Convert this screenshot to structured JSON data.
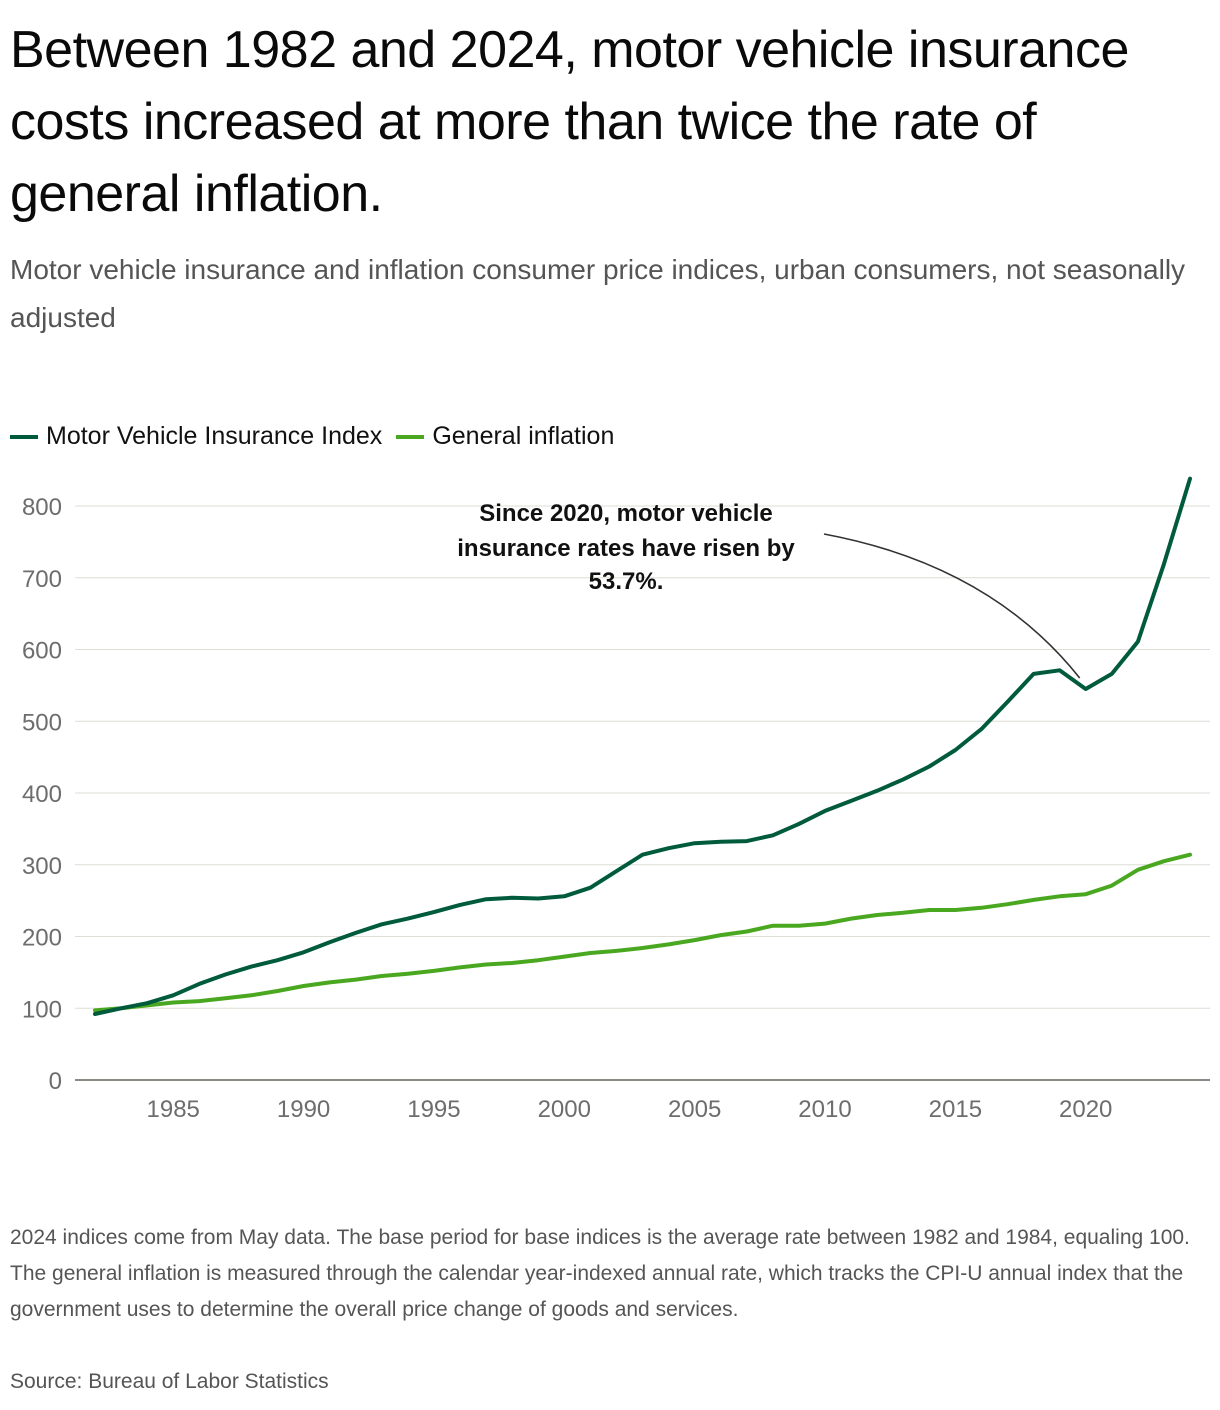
{
  "header": {
    "title": "Between 1982 and 2024, motor vehicle insurance costs increased at more than twice the rate of general inflation.",
    "subtitle": "Motor vehicle insurance and inflation consumer price indices, urban consumers, not seasonally adjusted"
  },
  "legend": [
    {
      "label": "Motor Vehicle Insurance Index",
      "color": "#005a3c"
    },
    {
      "label": "General inflation",
      "color": "#4aa820"
    }
  ],
  "annotation": {
    "lines": [
      "Since 2020, motor vehicle",
      "insurance rates have risen by",
      "53.7%."
    ],
    "target_year": 2020
  },
  "footer": {
    "note": "2024 indices come from May data. The base period for base indices is the average rate between 1982 and 1984, equaling 100. The general inflation is measured through the calendar year-indexed annual rate, which tracks the CPI-U annual index that the government uses to determine the overall price change of goods and services.",
    "source": "Source: Bureau of Labor Statistics"
  },
  "chart_data": {
    "type": "line",
    "title": "Between 1982 and 2024, motor vehicle insurance costs increased at more than twice the rate of general inflation.",
    "xlabel": "",
    "ylabel": "",
    "xlim": [
      1982,
      2024
    ],
    "ylim": [
      0,
      800
    ],
    "grid": true,
    "legend_position": "top-left",
    "x_ticks": [
      1985,
      1990,
      1995,
      2000,
      2005,
      2010,
      2015,
      2020
    ],
    "y_ticks": [
      0,
      100,
      200,
      300,
      400,
      500,
      600,
      700,
      800
    ],
    "x": [
      1982,
      1983,
      1984,
      1985,
      1986,
      1987,
      1988,
      1989,
      1990,
      1991,
      1992,
      1993,
      1994,
      1995,
      1996,
      1997,
      1998,
      1999,
      2000,
      2001,
      2002,
      2003,
      2004,
      2005,
      2006,
      2007,
      2008,
      2009,
      2010,
      2011,
      2012,
      2013,
      2014,
      2015,
      2016,
      2017,
      2018,
      2019,
      2020,
      2021,
      2022,
      2023,
      2024
    ],
    "series": [
      {
        "name": "Motor Vehicle Insurance Index",
        "color": "#005a3c",
        "values": [
          92,
          100,
          107,
          118,
          134,
          147,
          158,
          167,
          178,
          192,
          205,
          217,
          225,
          234,
          244,
          252,
          254,
          253,
          256,
          268,
          291,
          314,
          323,
          330,
          332,
          333,
          341,
          357,
          375,
          389,
          403,
          419,
          437,
          460,
          489,
          527,
          566,
          571,
          545,
          566,
          611,
          719,
          838
        ]
      },
      {
        "name": "General inflation",
        "color": "#4aa820",
        "values": [
          97,
          100,
          104,
          108,
          110,
          114,
          118,
          124,
          131,
          136,
          140,
          145,
          148,
          152,
          157,
          161,
          163,
          167,
          172,
          177,
          180,
          184,
          189,
          195,
          202,
          207,
          215,
          215,
          218,
          225,
          230,
          233,
          237,
          237,
          240,
          245,
          251,
          256,
          259,
          271,
          293,
          305,
          314
        ]
      }
    ]
  }
}
